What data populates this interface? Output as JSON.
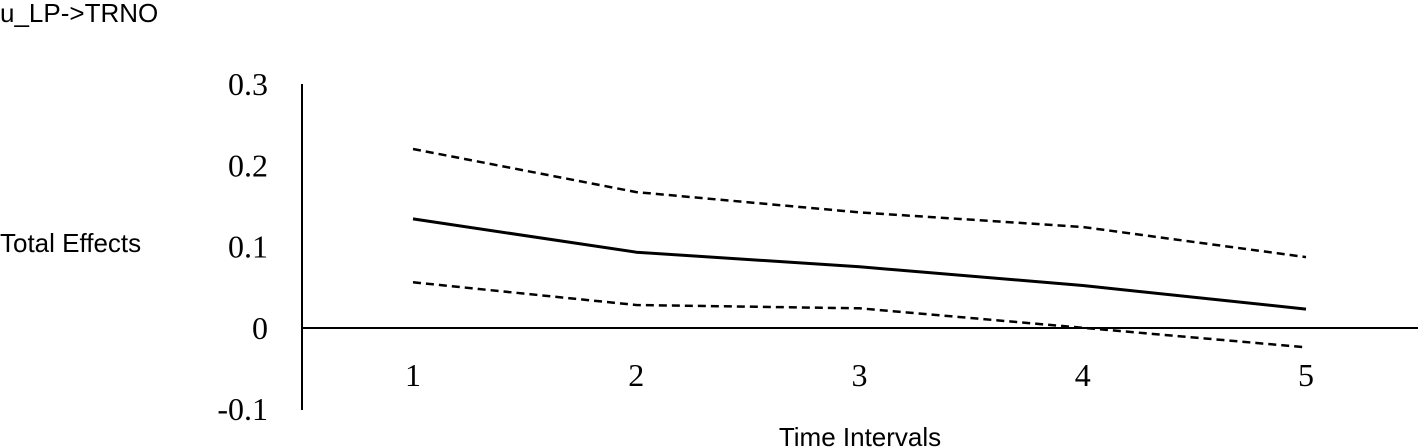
{
  "chart_data": {
    "type": "line",
    "title": "u_LP->TRNO",
    "xlabel": "Time Intervals",
    "ylabel": "Total Effects",
    "categories": [
      "1",
      "2",
      "3",
      "4",
      "5"
    ],
    "ylim": [
      -0.1,
      0.3
    ],
    "yticks": [
      "0.3",
      "0.2",
      "0.1",
      "0",
      "-0.1"
    ],
    "grid": false,
    "legend": "none",
    "series": [
      {
        "values": [
          0.22,
          0.167,
          0.142,
          0.124,
          0.087
        ],
        "style": "dashed",
        "color": "#000000"
      },
      {
        "values": [
          0.134,
          0.093,
          0.075,
          0.052,
          0.023
        ],
        "style": "solid",
        "color": "#000000"
      },
      {
        "values": [
          0.056,
          0.028,
          0.024,
          0.0,
          -0.024
        ],
        "style": "dashed",
        "color": "#000000"
      }
    ]
  }
}
